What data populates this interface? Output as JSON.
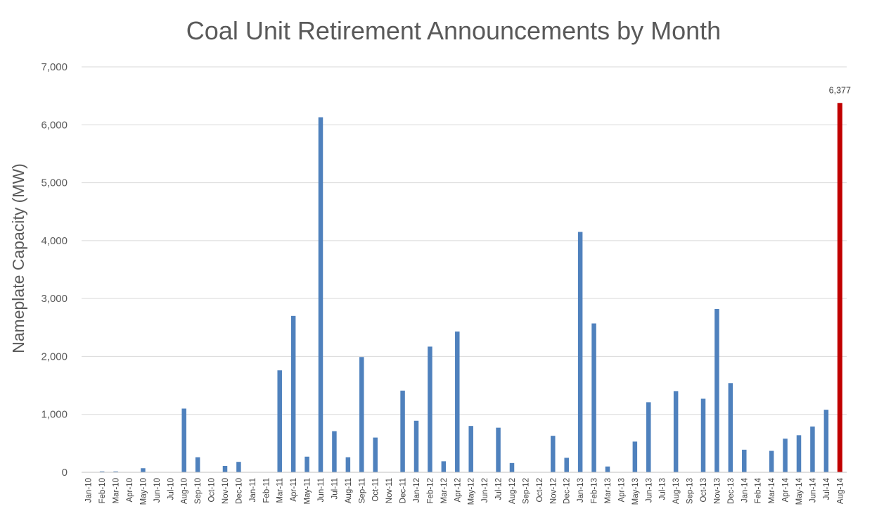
{
  "chart_data": {
    "type": "bar",
    "title": "Coal Unit Retirement Announcements by Month",
    "xlabel": "",
    "ylabel": "Nameplate Capacity (MW)",
    "ylim": [
      0,
      7000
    ],
    "yticks": [
      0,
      1000,
      2000,
      3000,
      4000,
      5000,
      6000,
      7000
    ],
    "ytick_labels": [
      "0",
      "1,000",
      "2,000",
      "3,000",
      "4,000",
      "5,000",
      "6,000",
      "7,000"
    ],
    "grid": true,
    "categories": [
      "Jan-10",
      "Feb-10",
      "Mar-10",
      "Apr-10",
      "May-10",
      "Jun-10",
      "Jul-10",
      "Aug-10",
      "Sep-10",
      "Oct-10",
      "Nov-10",
      "Dec-10",
      "Jan-11",
      "Feb-11",
      "Mar-11",
      "Apr-11",
      "May-11",
      "Jun-11",
      "Jul-11",
      "Aug-11",
      "Sep-11",
      "Oct-11",
      "Nov-11",
      "Dec-11",
      "Jan-12",
      "Feb-12",
      "Mar-12",
      "Apr-12",
      "May-12",
      "Jun-12",
      "Jul-12",
      "Aug-12",
      "Sep-12",
      "Oct-12",
      "Nov-12",
      "Dec-12",
      "Jan-13",
      "Feb-13",
      "Mar-13",
      "Apr-13",
      "May-13",
      "Jun-13",
      "Jul-13",
      "Aug-13",
      "Sep-13",
      "Oct-13",
      "Nov-13",
      "Dec-13",
      "Jan-14",
      "Feb-14",
      "Mar-14",
      "Apr-14",
      "May-14",
      "Jun-14",
      "Jul-14",
      "Aug-14"
    ],
    "values": [
      0,
      15,
      15,
      0,
      70,
      0,
      0,
      1100,
      260,
      0,
      110,
      180,
      0,
      0,
      1760,
      2700,
      270,
      6130,
      710,
      260,
      1990,
      600,
      0,
      1410,
      890,
      2170,
      190,
      2430,
      800,
      0,
      770,
      160,
      0,
      0,
      630,
      250,
      4150,
      2570,
      100,
      0,
      530,
      1210,
      0,
      1400,
      0,
      1270,
      2820,
      1540,
      390,
      0,
      370,
      580,
      640,
      790,
      1080,
      6377
    ],
    "bar_color": "#4f81bd",
    "highlight_color": "#c00000",
    "highlight_index": 55,
    "data_labels": [
      {
        "index": 55,
        "text": "6,377"
      }
    ]
  }
}
